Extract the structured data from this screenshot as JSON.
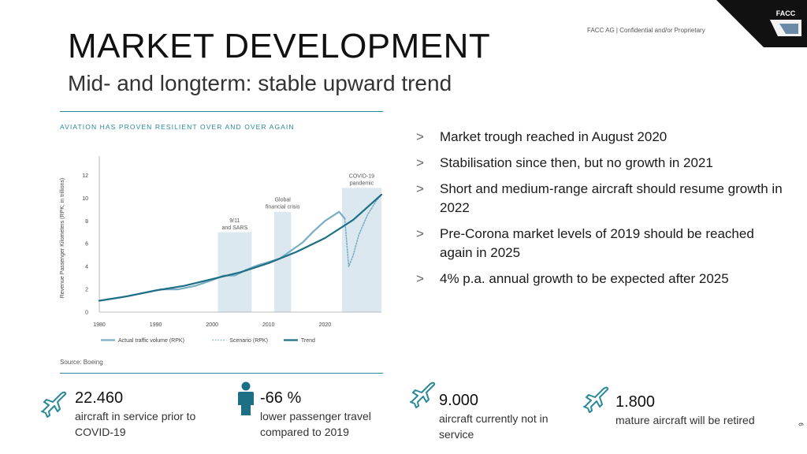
{
  "header": {
    "title": "MARKET DEVELOPMENT",
    "subtitle": "Mid- and longterm: stable upward trend",
    "confidential": "FACC AG | Confidential and/or Proprietary",
    "logo_text": "FACC"
  },
  "bullets": [
    {
      "marker": ">",
      "text": "Market trough reached in August 2020"
    },
    {
      "marker": ">",
      "text": "Stabilisation since then, but no growth in 2021"
    },
    {
      "marker": ">",
      "text": "Short and medium-range aircraft should resume growth in 2022"
    },
    {
      "marker": ">",
      "text": "Pre-Corona market levels of 2019 should be reached again in 2025"
    },
    {
      "marker": ">",
      "text": "4% p.a. annual growth to be expected after 2025"
    }
  ],
  "stats": [
    {
      "icon": "airplane-icon",
      "value": "22.460",
      "desc": "aircraft in service prior to COVID-19"
    },
    {
      "icon": "person-icon",
      "value": "-66 %",
      "desc": "lower passenger travel compared to 2019"
    },
    {
      "icon": "airplane-icon",
      "value": "9.000",
      "desc": "aircraft currently not in service"
    },
    {
      "icon": "airplane-icon",
      "value": "1.800",
      "desc": "mature aircraft will be retired"
    }
  ],
  "page_number": "6",
  "colors": {
    "teal": "#2a8a9a",
    "trend": "#1d6f86",
    "actual": "#7aaec3",
    "band": "#dce8ef"
  },
  "chart_data": {
    "type": "line",
    "title": "AVIATION HAS PROVEN RESILIENT OVER AND OVER AGAIN",
    "ylabel": "Revenue Passenger Kilometers (RPK; in trillions)",
    "xlabel": "",
    "source": "Source: Boeing",
    "xlim": [
      1980,
      2030
    ],
    "ylim": [
      0,
      13
    ],
    "xticks": [
      1980,
      1990,
      2000,
      2010,
      2020
    ],
    "yticks": [
      0,
      2,
      4,
      6,
      8,
      10,
      12
    ],
    "bands": [
      {
        "label": "9/11 and SARS",
        "x0": 2001,
        "x1": 2007,
        "top": 7.0
      },
      {
        "label": "Global financial crisis",
        "x0": 2011,
        "x1": 2014,
        "top": 8.8
      },
      {
        "label": "COVID-19 pandemic",
        "x0": 2023,
        "x1": 2030,
        "top": 10.9
      }
    ],
    "series": [
      {
        "name": "Actual traffic volume (RPK)",
        "style": "solid-light",
        "x": [
          1980,
          1984,
          1988,
          1991,
          1994,
          1997,
          2000,
          2002,
          2004,
          2006,
          2008,
          2010,
          2012,
          2014,
          2016,
          2018,
          2020,
          2022.5,
          2023.5
        ],
        "y": [
          1.0,
          1.3,
          1.7,
          2.0,
          2.0,
          2.3,
          2.8,
          3.2,
          3.2,
          3.7,
          4.1,
          4.4,
          4.7,
          5.4,
          6.1,
          7.1,
          8.0,
          8.8,
          8.2
        ]
      },
      {
        "name": "Scenario (RPK)",
        "style": "dotted",
        "x": [
          2023.5,
          2024.2,
          2025,
          2026,
          2027.5,
          2029,
          2030
        ],
        "y": [
          8.2,
          4.0,
          5.0,
          6.8,
          8.5,
          9.7,
          10.3
        ]
      },
      {
        "name": "Trend",
        "style": "solid-dark",
        "x": [
          1980,
          1985,
          1990,
          1995,
          2000,
          2005,
          2010,
          2015,
          2020,
          2025,
          2030
        ],
        "y": [
          1.0,
          1.4,
          1.9,
          2.3,
          2.9,
          3.5,
          4.3,
          5.3,
          6.5,
          8.1,
          10.3
        ]
      }
    ]
  }
}
